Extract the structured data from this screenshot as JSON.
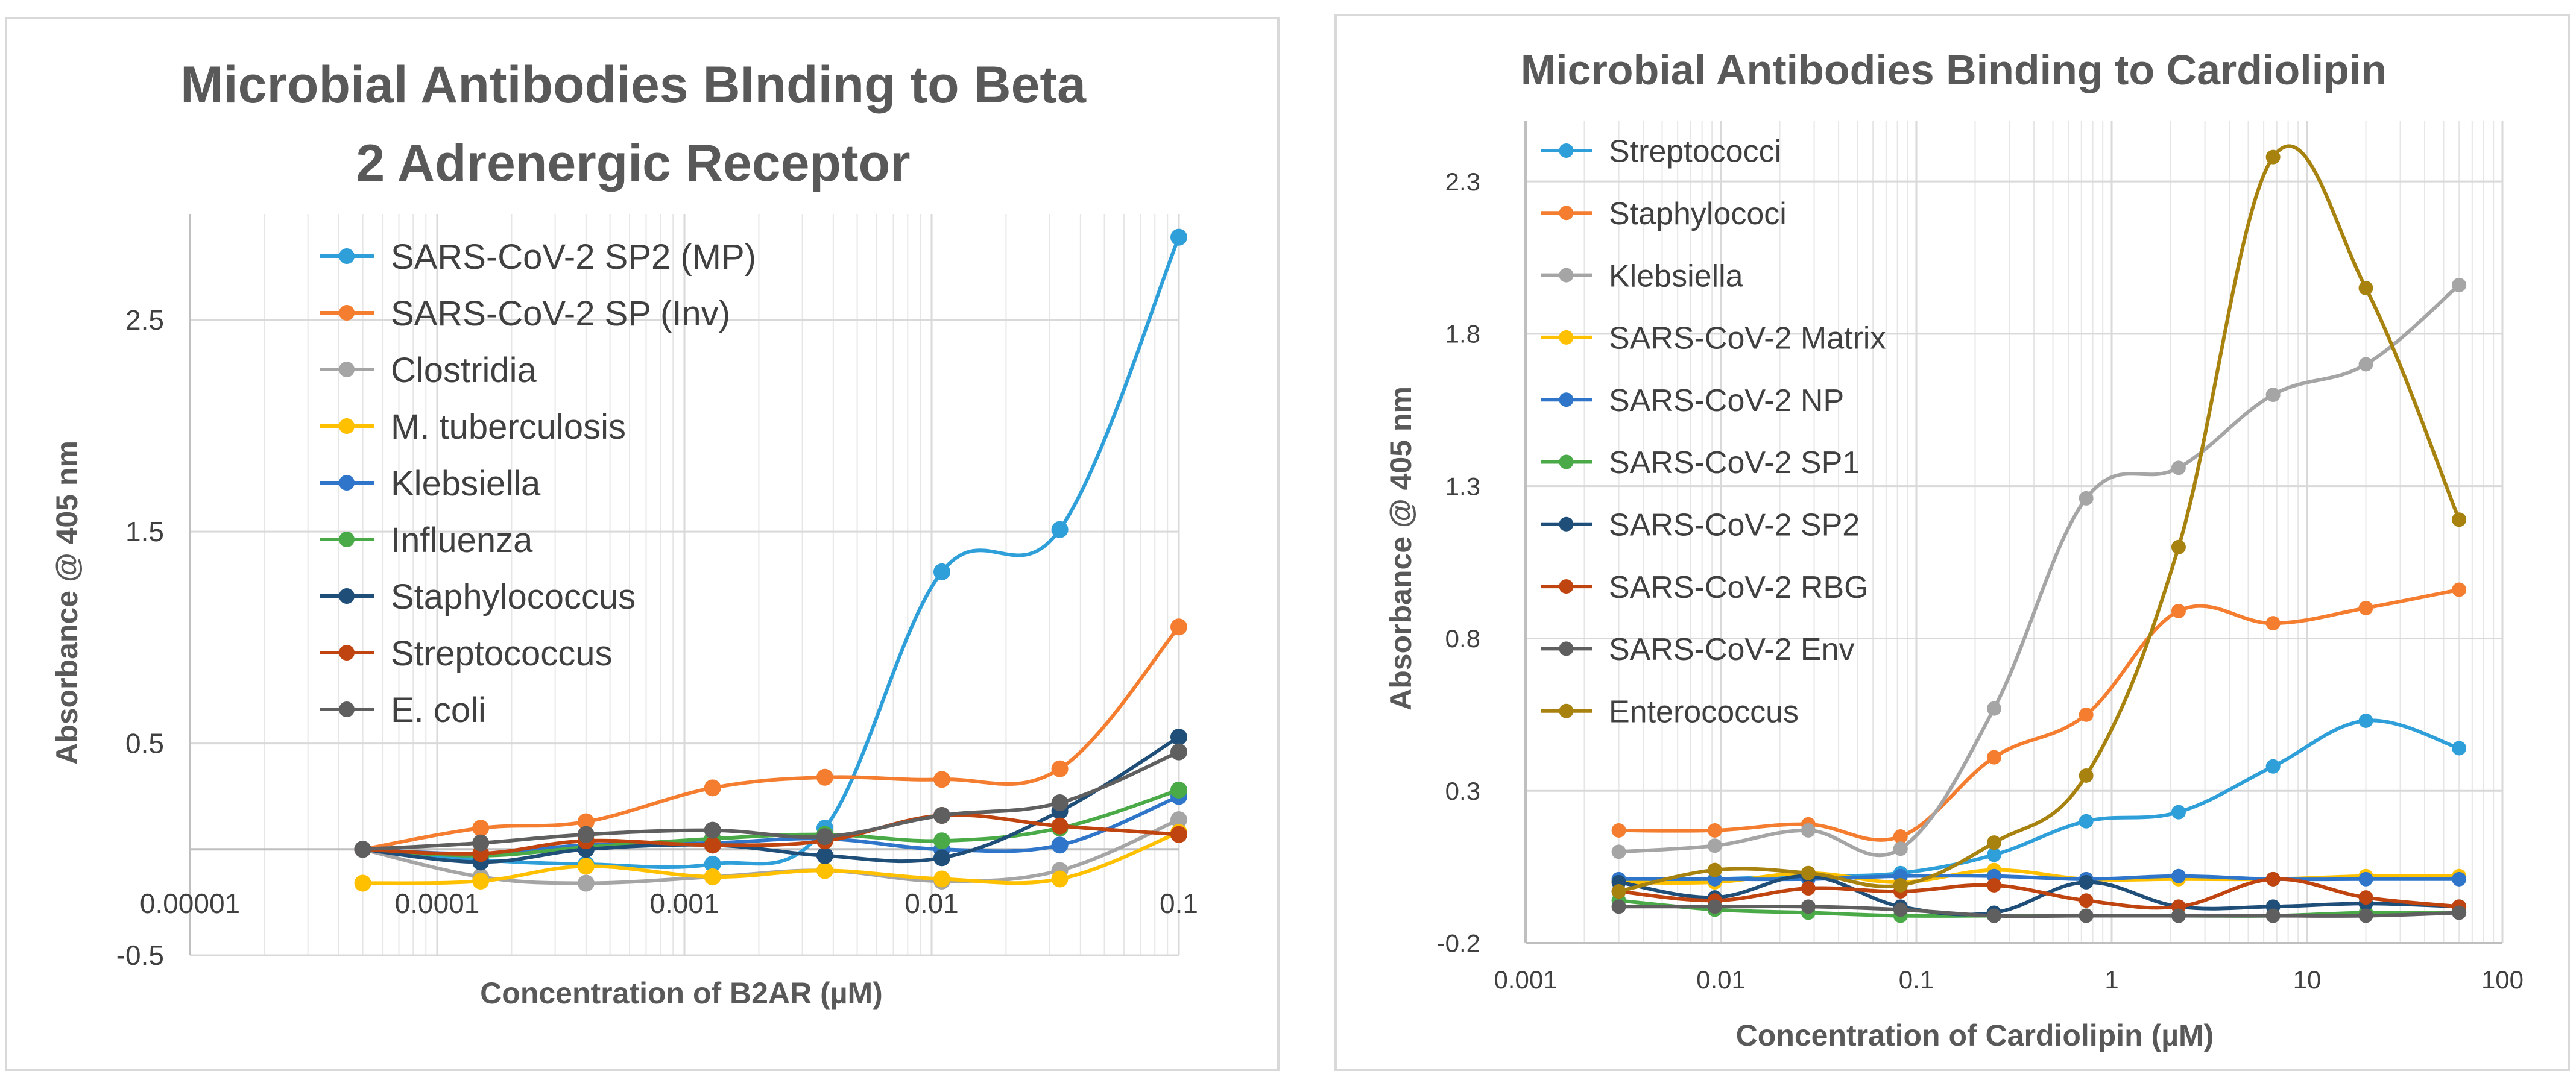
{
  "chart_data": [
    {
      "type": "line",
      "title": [
        "Microbial Antibodies BInding to Beta",
        "2 Adrenergic Receptor"
      ],
      "xlabel": "Concentration of B2AR (µM)",
      "ylabel": "Absorbance  @ 405 nm",
      "xscale": "log",
      "xlim": [
        1e-05,
        0.1
      ],
      "ylim": [
        -0.5,
        3.0
      ],
      "x_tick_labels": [
        "0.00001",
        "0.0001",
        "0.001",
        "0.01",
        "0.1"
      ],
      "y_tick_labels": [
        "-0.5",
        "0.5",
        "1.5",
        "2.5"
      ],
      "x_tick_values": [
        1e-05,
        0.0001,
        0.001,
        0.01,
        0.1
      ],
      "y_tick_values": [
        -0.5,
        0.5,
        1.5,
        2.5
      ],
      "x": [
        5e-05,
        0.00015,
        0.0004,
        0.0013,
        0.0037,
        0.011,
        0.033,
        0.1
      ],
      "legend_position": "top-left",
      "series": [
        {
          "name": "SARS-CoV-2 SP2 (MP)",
          "color": "#2e9fd9",
          "values": [
            0.0,
            -0.05,
            -0.07,
            -0.07,
            0.1,
            1.31,
            1.51,
            2.89
          ]
        },
        {
          "name": "SARS-CoV-2 SP (Inv)",
          "color": "#f47d30",
          "values": [
            0.0,
            0.1,
            0.13,
            0.29,
            0.34,
            0.33,
            0.38,
            1.05
          ]
        },
        {
          "name": "Clostridia",
          "color": "#a5a5a5",
          "values": [
            0.0,
            -0.13,
            -0.16,
            -0.13,
            -0.1,
            -0.15,
            -0.1,
            0.14
          ]
        },
        {
          "name": "M. tuberculosis",
          "color": "#ffc000",
          "values": [
            -0.16,
            -0.15,
            -0.08,
            -0.13,
            -0.1,
            -0.14,
            -0.14,
            0.08
          ]
        },
        {
          "name": "Klebsiella",
          "color": "#2f75c9",
          "values": [
            0.0,
            -0.02,
            0.02,
            0.03,
            0.05,
            0.0,
            0.02,
            0.25
          ]
        },
        {
          "name": "Influenza",
          "color": "#4aaa48",
          "values": [
            0.0,
            -0.03,
            0.01,
            0.05,
            0.07,
            0.04,
            0.1,
            0.28
          ]
        },
        {
          "name": "Staphylococcus",
          "color": "#1f4e79",
          "values": [
            0.0,
            -0.06,
            0.0,
            0.02,
            -0.03,
            -0.04,
            0.18,
            0.53
          ]
        },
        {
          "name": "Streptococcus",
          "color": "#c0440f",
          "values": [
            0.0,
            -0.02,
            0.04,
            0.02,
            0.04,
            0.16,
            0.11,
            0.07
          ]
        },
        {
          "name": "E. coli",
          "color": "#5f5f5f",
          "values": [
            0.0,
            0.03,
            0.07,
            0.09,
            0.06,
            0.16,
            0.22,
            0.46
          ]
        }
      ]
    },
    {
      "type": "line",
      "title": [
        "Microbial Antibodies Binding to Cardiolipin"
      ],
      "xlabel": "Concentration of Cardiolipin (µM)",
      "ylabel": "Absorbance @ 405 nm",
      "xscale": "log",
      "xlim": [
        0.001,
        100
      ],
      "ylim": [
        -0.2,
        2.5
      ],
      "x_tick_labels": [
        "0.001",
        "0.01",
        "0.1",
        "1",
        "10",
        "100"
      ],
      "y_tick_labels": [
        "-0.2",
        "0.3",
        "0.8",
        "1.3",
        "1.8",
        "2.3"
      ],
      "x_tick_values": [
        0.001,
        0.01,
        0.1,
        1,
        10,
        100
      ],
      "y_tick_values": [
        -0.2,
        0.3,
        0.8,
        1.3,
        1.8,
        2.3
      ],
      "x": [
        0.003,
        0.0093,
        0.028,
        0.083,
        0.25,
        0.74,
        2.2,
        6.7,
        20,
        60
      ],
      "legend_position": "top-left",
      "series": [
        {
          "name": "Streptococci",
          "color": "#2e9fd9",
          "values": [
            0.0,
            0.01,
            0.02,
            0.03,
            0.09,
            0.2,
            0.23,
            0.38,
            0.53,
            0.44
          ]
        },
        {
          "name": "Staphylococi",
          "color": "#f47d30",
          "values": [
            0.17,
            0.17,
            0.19,
            0.15,
            0.41,
            0.55,
            0.89,
            0.85,
            0.9,
            0.96
          ]
        },
        {
          "name": "Klebsiella",
          "color": "#a5a5a5",
          "values": [
            0.1,
            0.12,
            0.17,
            0.11,
            0.57,
            1.26,
            1.36,
            1.6,
            1.7,
            1.96
          ]
        },
        {
          "name": "SARS-CoV-2 Matrix",
          "color": "#ffc000",
          "values": [
            0.0,
            0.0,
            0.03,
            0.0,
            0.04,
            0.01,
            0.01,
            0.01,
            0.02,
            0.02
          ]
        },
        {
          "name": "SARS-CoV-2 NP",
          "color": "#2f75c9",
          "values": [
            0.01,
            0.01,
            0.01,
            0.02,
            0.02,
            0.01,
            0.02,
            0.01,
            0.01,
            0.01
          ]
        },
        {
          "name": "SARS-CoV-2 SP1",
          "color": "#4aaa48",
          "values": [
            -0.06,
            -0.09,
            -0.1,
            -0.11,
            -0.11,
            -0.11,
            -0.11,
            -0.11,
            -0.1,
            -0.1
          ]
        },
        {
          "name": "SARS-CoV-2 SP2",
          "color": "#1f4e79",
          "values": [
            0.0,
            -0.05,
            0.02,
            -0.08,
            -0.1,
            0.0,
            -0.08,
            -0.08,
            -0.07,
            -0.08
          ]
        },
        {
          "name": "SARS-CoV-2 RBG",
          "color": "#c0440f",
          "values": [
            -0.03,
            -0.06,
            -0.02,
            -0.03,
            -0.01,
            -0.06,
            -0.08,
            0.01,
            -0.05,
            -0.08
          ]
        },
        {
          "name": "SARS-CoV-2 Env",
          "color": "#5f5f5f",
          "values": [
            -0.08,
            -0.08,
            -0.08,
            -0.09,
            -0.11,
            -0.11,
            -0.11,
            -0.11,
            -0.11,
            -0.1
          ]
        },
        {
          "name": "Enterococcus",
          "color": "#a8820f",
          "values": [
            -0.03,
            0.04,
            0.03,
            -0.01,
            0.13,
            0.35,
            1.1,
            2.38,
            1.95,
            1.19
          ]
        }
      ]
    }
  ]
}
